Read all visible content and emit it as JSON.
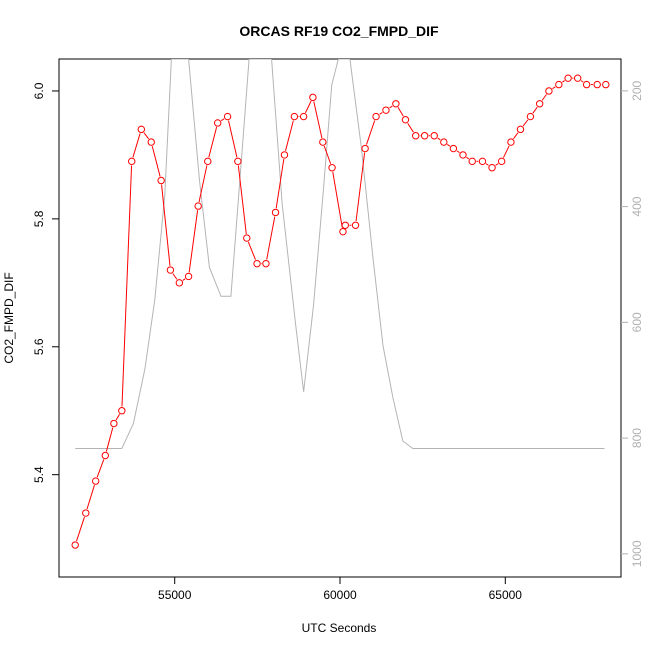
{
  "chart_data": {
    "type": "line",
    "title": "ORCAS RF19 CO2_FMPD_DIF",
    "xlabel": "UTC Seconds",
    "ylabel": "CO2_FMPD_DIF",
    "xlim": [
      51500,
      68500
    ],
    "ylim": [
      5.24,
      6.05
    ],
    "x_ticks": [
      55000,
      60000,
      65000
    ],
    "x_tick_labels": [
      "55000",
      "60000",
      "65000"
    ],
    "y_ticks": [
      5.4,
      5.6,
      5.8,
      6.0
    ],
    "y_tick_labels": [
      "5.4",
      "5.6",
      "5.8",
      "6.0"
    ],
    "y2_range_top_bottom": [
      145,
      1040
    ],
    "y2_ticks": [
      200,
      400,
      600,
      800,
      1000
    ],
    "y2_tick_labels": [
      "200",
      "400",
      "600",
      "800",
      "1000"
    ],
    "grid": false,
    "series": [
      {
        "color": "#ff0000",
        "marker": "open-circle",
        "axis": "left",
        "x": [
          51990,
          52310,
          52610,
          52900,
          53160,
          53400,
          53700,
          53990,
          54290,
          54590,
          54870,
          55140,
          55420,
          55710,
          56000,
          56300,
          56600,
          56910,
          57180,
          57490,
          57760,
          58050,
          58320,
          58620,
          58900,
          59180,
          59480,
          59760,
          60090,
          60160,
          60470,
          60760,
          61090,
          61390,
          61690,
          61980,
          62290,
          62560,
          62850,
          63140,
          63430,
          63720,
          64000,
          64310,
          64600,
          64890,
          65170,
          65460,
          65760,
          66040,
          66320,
          66620,
          66900,
          67190,
          67460,
          67780,
          68040
        ],
        "values": [
          5.29,
          5.34,
          5.39,
          5.43,
          5.48,
          5.5,
          5.89,
          5.94,
          5.92,
          5.86,
          5.72,
          5.7,
          5.71,
          5.82,
          5.89,
          5.95,
          5.96,
          5.89,
          5.77,
          5.73,
          5.73,
          5.81,
          5.9,
          5.96,
          5.96,
          5.99,
          5.92,
          5.88,
          5.78,
          5.79,
          5.79,
          5.91,
          5.96,
          5.97,
          5.98,
          5.955,
          5.93,
          5.93,
          5.93,
          5.92,
          5.91,
          5.9,
          5.89,
          5.89,
          5.88,
          5.89,
          5.92,
          5.94,
          5.96,
          5.98,
          6.0,
          6.01,
          6.02,
          6.02,
          6.01,
          6.01,
          6.01
        ]
      },
      {
        "color": "#b4b4b4",
        "marker": "none",
        "axis": "right",
        "x": [
          51990,
          53400,
          53750,
          54100,
          54400,
          54700,
          54900,
          55420,
          55750,
          56050,
          56400,
          56700,
          56950,
          57250,
          57580,
          57930,
          58250,
          58650,
          58900,
          59200,
          59500,
          59750,
          59950,
          60300,
          60650,
          61000,
          61300,
          61600,
          61900,
          62200,
          63000,
          64000,
          65000,
          66000,
          67000,
          68000
        ],
        "values": [
          818,
          818,
          775,
          680,
          560,
          380,
          145,
          145,
          355,
          505,
          555,
          555,
          370,
          145,
          145,
          145,
          395,
          600,
          720,
          570,
          370,
          190,
          145,
          145,
          300,
          490,
          640,
          730,
          805,
          818,
          818,
          818,
          818,
          818,
          818,
          818
        ]
      }
    ]
  }
}
